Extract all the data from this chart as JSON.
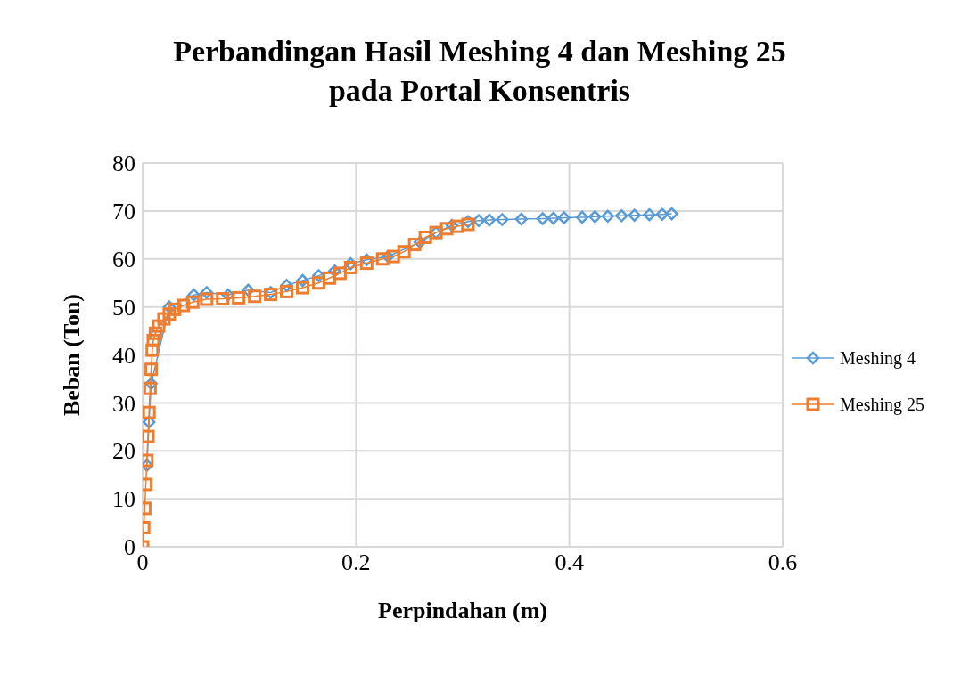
{
  "chart_data": {
    "type": "line",
    "title": "Perbandingan Hasil Meshing 4 dan Meshing 25\npada Portal Konsentris",
    "xlabel": "Perpindahan (m)",
    "ylabel": "Beban (Ton)",
    "xlim": [
      0,
      0.6
    ],
    "xticks": [
      0,
      0.2,
      0.4,
      0.6
    ],
    "ylim": [
      0,
      80
    ],
    "yticks": [
      0,
      10,
      20,
      30,
      40,
      50,
      60,
      70,
      80
    ],
    "grid": true,
    "legend": "right",
    "line_style": "solid",
    "series": [
      {
        "name": "Meshing 4",
        "color": "#5b9bd5",
        "marker": "diamond",
        "x": [
          0.004,
          0.006,
          0.008,
          0.025,
          0.048,
          0.06,
          0.08,
          0.099,
          0.12,
          0.135,
          0.15,
          0.165,
          0.18,
          0.195,
          0.21,
          0.23,
          0.26,
          0.275,
          0.29,
          0.305,
          0.315,
          0.325,
          0.337,
          0.355,
          0.375,
          0.385,
          0.395,
          0.412,
          0.424,
          0.436,
          0.449,
          0.461,
          0.475,
          0.487,
          0.496
        ],
        "values": [
          17,
          26,
          34,
          50,
          52.5,
          53,
          52.5,
          53.5,
          53,
          54.5,
          55.5,
          56.5,
          57.5,
          59,
          59.8,
          60.5,
          63.5,
          65.5,
          67,
          67.8,
          68,
          68.1,
          68.2,
          68.3,
          68.4,
          68.5,
          68.6,
          68.7,
          68.8,
          68.9,
          69,
          69.1,
          69.2,
          69.3,
          69.4
        ]
      },
      {
        "name": "Meshing 25",
        "color": "#ed7d31",
        "marker": "square",
        "x": [
          0,
          0.001,
          0.002,
          0.003,
          0.004,
          0.005,
          0.006,
          0.007,
          0.008,
          0.009,
          0.01,
          0.012,
          0.015,
          0.02,
          0.025,
          0.03,
          0.038,
          0.047,
          0.06,
          0.075,
          0.09,
          0.105,
          0.12,
          0.135,
          0.15,
          0.165,
          0.175,
          0.185,
          0.195,
          0.21,
          0.225,
          0.235,
          0.245,
          0.255,
          0.265,
          0.275,
          0.285,
          0.295,
          0.305
        ],
        "values": [
          0,
          4,
          8,
          13,
          18,
          23,
          28,
          33,
          37,
          41,
          43,
          44.5,
          46,
          47.5,
          48.5,
          49.5,
          50.3,
          51,
          51.6,
          51.7,
          51.9,
          52.2,
          52.6,
          53.2,
          54,
          55,
          56,
          57,
          58.2,
          59.1,
          60,
          60.5,
          61.5,
          63,
          64.5,
          65.5,
          66.3,
          66.8,
          67.2
        ]
      }
    ]
  }
}
